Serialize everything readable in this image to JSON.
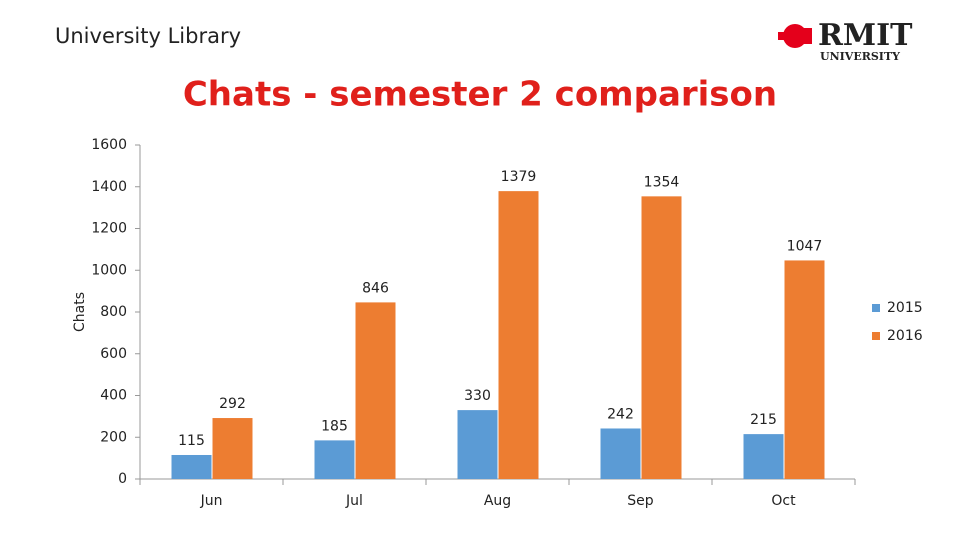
{
  "header": {
    "library": "University Library",
    "logo": "RMIT",
    "logo_sub": "UNIVERSITY"
  },
  "chart_data": {
    "type": "bar",
    "title": "Chats - semester 2 comparison",
    "y_label": "Chats",
    "categories": [
      "Jun",
      "Jul",
      "Aug",
      "Sep",
      "Oct"
    ],
    "series": [
      {
        "name": "2015",
        "color": "#5b9bd5",
        "values": [
          115,
          185,
          330,
          242,
          215
        ]
      },
      {
        "name": "2016",
        "color": "#ed7d31",
        "values": [
          292,
          846,
          1379,
          1354,
          1047
        ]
      }
    ],
    "ylim": [
      0,
      1600
    ],
    "yticks": [
      0,
      200,
      400,
      600,
      800,
      1000,
      1200,
      1400,
      1600
    ],
    "grid": false,
    "legend": "right"
  }
}
